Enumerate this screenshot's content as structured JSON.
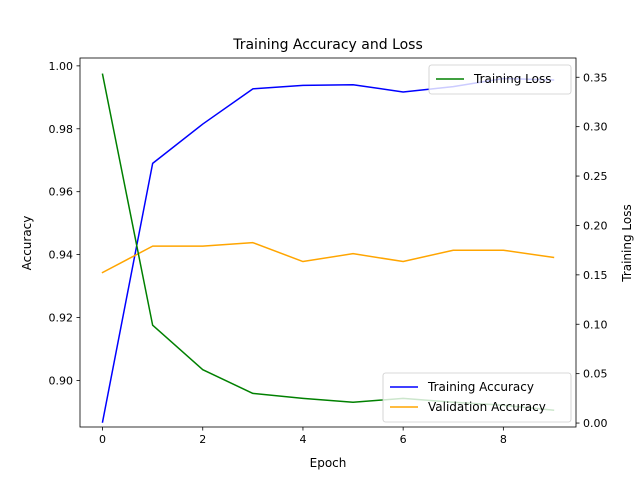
{
  "chart_data": {
    "type": "line",
    "title": "Training Accuracy and Loss",
    "xlabel": "Epoch",
    "ylabel": "Accuracy",
    "y2label": "Training Loss",
    "x": [
      0,
      1,
      2,
      3,
      4,
      5,
      6,
      7,
      8,
      9
    ],
    "xlim": [
      -0.45,
      9.45
    ],
    "ylim": [
      0.8852,
      1.0025
    ],
    "y2lim": [
      -0.004,
      0.3695
    ],
    "xticks": [
      0,
      2,
      4,
      6,
      8
    ],
    "yticks": [
      0.9,
      0.92,
      0.94,
      0.96,
      0.98,
      1.0
    ],
    "y2ticks": [
      0.0,
      0.05,
      0.1,
      0.15,
      0.2,
      0.25,
      0.3,
      0.35
    ],
    "grid": false,
    "series": [
      {
        "name": "Training Accuracy",
        "axis": "left",
        "color": "#0000ff",
        "values": [
          0.8868,
          0.969,
          0.9815,
          0.9927,
          0.9938,
          0.994,
          0.9917,
          0.9934,
          0.996,
          0.9955
        ]
      },
      {
        "name": "Validation Accuracy",
        "axis": "left",
        "color": "#ffa500",
        "values": [
          0.9343,
          0.9427,
          0.9427,
          0.9438,
          0.9378,
          0.9403,
          0.9378,
          0.9414,
          0.9414,
          0.9391
        ]
      },
      {
        "name": "Training Loss",
        "axis": "right",
        "color": "#008000",
        "values": [
          0.353,
          0.099,
          0.054,
          0.03,
          0.025,
          0.021,
          0.025,
          0.021,
          0.018,
          0.013
        ]
      }
    ],
    "legends": [
      {
        "placement": "upper-right",
        "series": [
          "Training Loss"
        ]
      },
      {
        "placement": "lower-right",
        "series": [
          "Training Accuracy",
          "Validation Accuracy"
        ]
      }
    ]
  }
}
